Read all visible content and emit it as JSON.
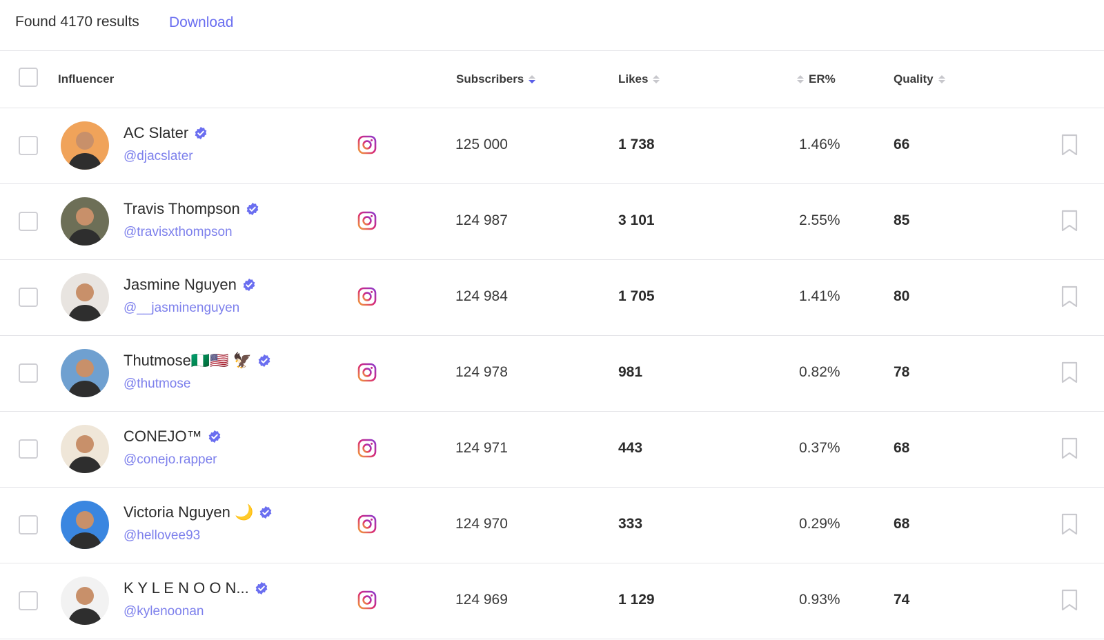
{
  "header": {
    "found_text": "Found 4170 results",
    "download_label": "Download"
  },
  "columns": {
    "influencer": "Influencer",
    "subscribers": "Subscribers",
    "likes": "Likes",
    "er": "ER%",
    "quality": "Quality"
  },
  "colors": {
    "accent": "#6a6ef0",
    "verified": "#6a6ef0",
    "border": "#e4e4e8"
  },
  "rows": [
    {
      "name": "AC Slater",
      "handle": "@djacslater",
      "platform_icon": "instagram-icon",
      "subscribers": "125 000",
      "likes": "1 738",
      "er": "1.46%",
      "quality": "66",
      "avatar_bg": "#f0a35a"
    },
    {
      "name": "Travis Thompson",
      "handle": "@travisxthompson",
      "platform_icon": "instagram-icon",
      "subscribers": "124 987",
      "likes": "3 101",
      "er": "2.55%",
      "quality": "85",
      "avatar_bg": "#6d6f57"
    },
    {
      "name": "Jasmine Nguyen",
      "handle": "@__jasminenguyen",
      "platform_icon": "instagram-icon",
      "subscribers": "124 984",
      "likes": "1 705",
      "er": "1.41%",
      "quality": "80",
      "avatar_bg": "#e8e4e0"
    },
    {
      "name": "Thutmose🇳🇬🇺🇸 🦅",
      "handle": "@thutmose",
      "platform_icon": "instagram-icon",
      "subscribers": "124 978",
      "likes": "981",
      "er": "0.82%",
      "quality": "78",
      "avatar_bg": "#6fa0d0"
    },
    {
      "name": "CONEJO™",
      "handle": "@conejo.rapper",
      "platform_icon": "instagram-icon",
      "subscribers": "124 971",
      "likes": "443",
      "er": "0.37%",
      "quality": "68",
      "avatar_bg": "#efe6d8"
    },
    {
      "name": "Victoria Nguyen 🌙",
      "handle": "@hellovee93",
      "platform_icon": "instagram-icon",
      "subscribers": "124 970",
      "likes": "333",
      "er": "0.29%",
      "quality": "68",
      "avatar_bg": "#3a86e0"
    },
    {
      "name": "K Y L E N O O N...",
      "handle": "@kylenoonan",
      "platform_icon": "instagram-icon",
      "subscribers": "124 969",
      "likes": "1 129",
      "er": "0.93%",
      "quality": "74",
      "avatar_bg": "#f2f2f2"
    }
  ]
}
